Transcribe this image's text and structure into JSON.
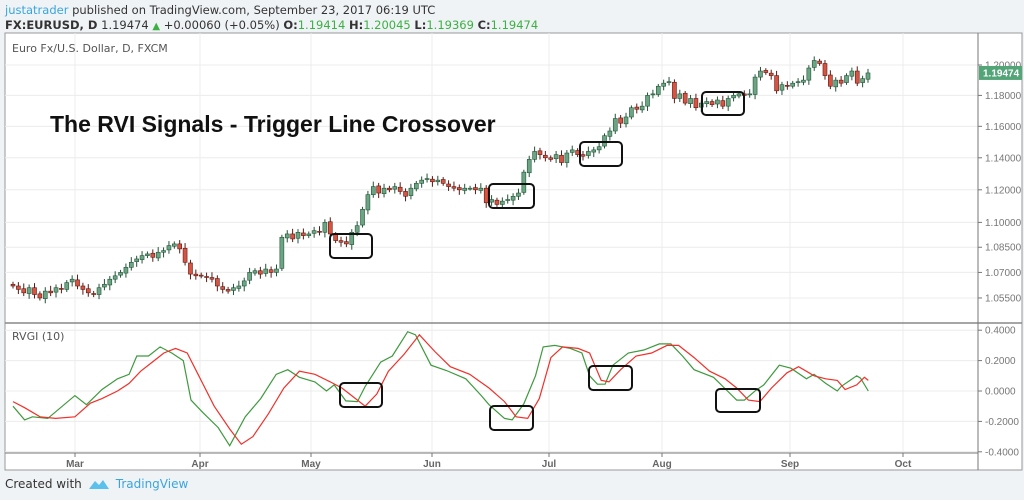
{
  "header": {
    "user": "justatrader",
    "published": "published on TradingView.com, September 23, 2017 06:19 UTC",
    "symbol": "FX:EURUSD, D",
    "last": "1.19474",
    "change": "+0.00060 (+0.05%)",
    "o_label": "O:",
    "o": "1.19414",
    "h_label": "H:",
    "h": "1.20045",
    "l_label": "L:",
    "l": "1.19369",
    "c_label": "C:",
    "c": "1.19474"
  },
  "footer": {
    "created_with": "Created with",
    "brand": "TradingView"
  },
  "colors": {
    "up": "#6ba583",
    "down": "#d75442",
    "rvgi": "#3e9a3e",
    "signal": "#f0302a",
    "last_price_bg": "#53a577",
    "annotation_box": "#111111"
  },
  "chart_data": [
    {
      "type": "candlestick",
      "title": "The RVI Signals - Trigger Line Crossover",
      "symbol_label": "Euro Fx/U.S. Dollar, D, FXCM",
      "first_date": "2017-02-13",
      "last_date": "2017-09-22",
      "y_scale": "log",
      "ylim": [
        1.045,
        1.212
      ],
      "y_ticks": [
        "1.20000",
        "1.18000",
        "1.16000",
        "1.14000",
        "1.12000",
        "1.10000",
        "1.08500",
        "1.07000",
        "1.05500"
      ],
      "x_ticks": [
        "Mar",
        "Apr",
        "May",
        "Jun",
        "Jul",
        "Aug",
        "Sep",
        "Oct"
      ],
      "last_price_label": "1.19474",
      "grid": true,
      "closes": [
        1.062,
        1.06,
        1.058,
        1.061,
        1.057,
        1.055,
        1.059,
        1.058,
        1.061,
        1.06,
        1.064,
        1.066,
        1.062,
        1.06,
        1.058,
        1.057,
        1.061,
        1.063,
        1.066,
        1.068,
        1.07,
        1.073,
        1.076,
        1.078,
        1.08,
        1.081,
        1.079,
        1.082,
        1.083,
        1.086,
        1.087,
        1.084,
        1.076,
        1.069,
        1.068,
        1.068,
        1.067,
        1.066,
        1.062,
        1.06,
        1.059,
        1.061,
        1.062,
        1.065,
        1.07,
        1.071,
        1.069,
        1.072,
        1.07,
        1.072,
        1.091,
        1.093,
        1.09,
        1.094,
        1.092,
        1.093,
        1.095,
        1.094,
        1.1,
        1.093,
        1.089,
        1.088,
        1.087,
        1.094,
        1.098,
        1.108,
        1.117,
        1.122,
        1.118,
        1.121,
        1.12,
        1.122,
        1.119,
        1.116,
        1.121,
        1.124,
        1.126,
        1.127,
        1.125,
        1.126,
        1.124,
        1.122,
        1.121,
        1.12,
        1.121,
        1.121,
        1.12,
        1.121,
        1.112,
        1.114,
        1.111,
        1.113,
        1.114,
        1.116,
        1.118,
        1.131,
        1.139,
        1.144,
        1.142,
        1.14,
        1.139,
        1.142,
        1.137,
        1.143,
        1.145,
        1.142,
        1.141,
        1.144,
        1.145,
        1.147,
        1.154,
        1.157,
        1.165,
        1.162,
        1.166,
        1.172,
        1.171,
        1.173,
        1.18,
        1.181,
        1.186,
        1.188,
        1.189,
        1.178,
        1.181,
        1.175,
        1.178,
        1.172,
        1.175,
        1.176,
        1.174,
        1.177,
        1.173,
        1.178,
        1.18,
        1.181,
        1.18,
        1.181,
        1.192,
        1.196,
        1.195,
        1.193,
        1.183,
        1.187,
        1.186,
        1.188,
        1.189,
        1.19,
        1.198,
        1.203,
        1.201,
        1.193,
        1.186,
        1.19,
        1.188,
        1.193,
        1.196,
        1.188,
        1.191,
        1.19474
      ]
    },
    {
      "type": "line",
      "label": "RVGI (10)",
      "ylim": [
        -0.4,
        0.4
      ],
      "y_ticks": [
        "0.4000",
        "0.2000",
        "0.0000",
        "-0.2000",
        "-0.4000"
      ],
      "series": [
        {
          "key": "rvgi",
          "points": [
            [
              "2017-02-13",
              -0.1
            ],
            [
              "2017-02-16",
              -0.19
            ],
            [
              "2017-02-18",
              -0.17
            ],
            [
              "2017-02-22",
              -0.18
            ],
            [
              "2017-03-01",
              -0.03
            ],
            [
              "2017-03-04",
              -0.09
            ],
            [
              "2017-03-08",
              0.01
            ],
            [
              "2017-03-12",
              0.08
            ],
            [
              "2017-03-15",
              0.11
            ],
            [
              "2017-03-17",
              0.23
            ],
            [
              "2017-03-20",
              0.23
            ],
            [
              "2017-03-23",
              0.29
            ],
            [
              "2017-03-26",
              0.25
            ],
            [
              "2017-03-29",
              0.2
            ],
            [
              "2017-03-31",
              -0.06
            ],
            [
              "2017-04-03",
              -0.14
            ],
            [
              "2017-04-07",
              -0.24
            ],
            [
              "2017-04-10",
              -0.36
            ],
            [
              "2017-04-14",
              -0.17
            ],
            [
              "2017-04-18",
              -0.05
            ],
            [
              "2017-04-22",
              0.11
            ],
            [
              "2017-04-25",
              0.14
            ],
            [
              "2017-04-28",
              0.09
            ],
            [
              "2017-05-02",
              0.06
            ],
            [
              "2017-05-05",
              0.0
            ],
            [
              "2017-05-07",
              0.04
            ],
            [
              "2017-05-10",
              -0.065
            ],
            [
              "2017-05-13",
              -0.07
            ],
            [
              "2017-05-15",
              0.03
            ],
            [
              "2017-05-19",
              0.19
            ],
            [
              "2017-05-22",
              0.23
            ],
            [
              "2017-05-26",
              0.39
            ],
            [
              "2017-05-28",
              0.37
            ],
            [
              "2017-06-01",
              0.17
            ],
            [
              "2017-06-05",
              0.135
            ],
            [
              "2017-06-10",
              0.08
            ],
            [
              "2017-06-14",
              -0.03
            ],
            [
              "2017-06-16",
              -0.09
            ],
            [
              "2017-06-20",
              -0.18
            ],
            [
              "2017-06-22",
              -0.19
            ],
            [
              "2017-06-25",
              -0.085
            ],
            [
              "2017-06-28",
              0.1
            ],
            [
              "2017-06-30",
              0.29
            ],
            [
              "2017-07-03",
              0.3
            ],
            [
              "2017-07-07",
              0.28
            ],
            [
              "2017-07-10",
              0.25
            ],
            [
              "2017-07-12",
              0.1
            ],
            [
              "2017-07-14",
              0.045
            ],
            [
              "2017-07-16",
              0.045
            ],
            [
              "2017-07-18",
              0.17
            ],
            [
              "2017-07-22",
              0.25
            ],
            [
              "2017-07-26",
              0.27
            ],
            [
              "2017-07-30",
              0.31
            ],
            [
              "2017-08-02",
              0.31
            ],
            [
              "2017-08-05",
              0.23
            ],
            [
              "2017-08-08",
              0.14
            ],
            [
              "2017-08-13",
              0.09
            ],
            [
              "2017-08-17",
              -0.01
            ],
            [
              "2017-08-19",
              -0.06
            ],
            [
              "2017-08-21",
              -0.06
            ],
            [
              "2017-08-24",
              0.005
            ],
            [
              "2017-08-26",
              0.04
            ],
            [
              "2017-08-30",
              0.17
            ],
            [
              "2017-09-02",
              0.15
            ],
            [
              "2017-09-06",
              0.08
            ],
            [
              "2017-09-08",
              0.11
            ],
            [
              "2017-09-11",
              0.05
            ],
            [
              "2017-09-14",
              0.0
            ],
            [
              "2017-09-15",
              0.03
            ],
            [
              "2017-09-19",
              0.1
            ],
            [
              "2017-09-20",
              0.085
            ],
            [
              "2017-09-22",
              0.0
            ]
          ]
        },
        {
          "key": "signal",
          "points": [
            [
              "2017-02-13",
              -0.07
            ],
            [
              "2017-02-16",
              -0.11
            ],
            [
              "2017-02-20",
              -0.17
            ],
            [
              "2017-02-24",
              -0.18
            ],
            [
              "2017-03-01",
              -0.17
            ],
            [
              "2017-03-05",
              -0.08
            ],
            [
              "2017-03-08",
              -0.05
            ],
            [
              "2017-03-12",
              0.0
            ],
            [
              "2017-03-15",
              0.05
            ],
            [
              "2017-03-18",
              0.13
            ],
            [
              "2017-03-21",
              0.19
            ],
            [
              "2017-03-24",
              0.25
            ],
            [
              "2017-03-27",
              0.28
            ],
            [
              "2017-03-30",
              0.25
            ],
            [
              "2017-04-02",
              0.1
            ],
            [
              "2017-04-06",
              -0.1
            ],
            [
              "2017-04-10",
              -0.25
            ],
            [
              "2017-04-13",
              -0.35
            ],
            [
              "2017-04-16",
              -0.3
            ],
            [
              "2017-04-20",
              -0.15
            ],
            [
              "2017-04-24",
              0.02
            ],
            [
              "2017-04-28",
              0.13
            ],
            [
              "2017-05-02",
              0.11
            ],
            [
              "2017-05-06",
              0.06
            ],
            [
              "2017-05-09",
              0.02
            ],
            [
              "2017-05-12",
              -0.04
            ],
            [
              "2017-05-15",
              -0.1
            ],
            [
              "2017-05-18",
              -0.02
            ],
            [
              "2017-05-21",
              0.13
            ],
            [
              "2017-05-25",
              0.24
            ],
            [
              "2017-05-29",
              0.37
            ],
            [
              "2017-06-02",
              0.26
            ],
            [
              "2017-06-06",
              0.16
            ],
            [
              "2017-06-11",
              0.11
            ],
            [
              "2017-06-16",
              0.02
            ],
            [
              "2017-06-20",
              -0.07
            ],
            [
              "2017-06-23",
              -0.17
            ],
            [
              "2017-06-26",
              -0.18
            ],
            [
              "2017-06-29",
              -0.05
            ],
            [
              "2017-07-02",
              0.22
            ],
            [
              "2017-07-05",
              0.29
            ],
            [
              "2017-07-09",
              0.28
            ],
            [
              "2017-07-12",
              0.25
            ],
            [
              "2017-07-15",
              0.07
            ],
            [
              "2017-07-17",
              0.06
            ],
            [
              "2017-07-20",
              0.14
            ],
            [
              "2017-07-24",
              0.23
            ],
            [
              "2017-07-28",
              0.25
            ],
            [
              "2017-08-01",
              0.3
            ],
            [
              "2017-08-04",
              0.3
            ],
            [
              "2017-08-08",
              0.22
            ],
            [
              "2017-08-12",
              0.13
            ],
            [
              "2017-08-16",
              0.08
            ],
            [
              "2017-08-19",
              0.02
            ],
            [
              "2017-08-22",
              -0.06
            ],
            [
              "2017-08-25",
              -0.07
            ],
            [
              "2017-08-28",
              0.02
            ],
            [
              "2017-09-01",
              0.12
            ],
            [
              "2017-09-04",
              0.16
            ],
            [
              "2017-09-08",
              0.1
            ],
            [
              "2017-09-11",
              0.08
            ],
            [
              "2017-09-14",
              0.07
            ],
            [
              "2017-09-16",
              0.01
            ],
            [
              "2017-09-19",
              0.04
            ],
            [
              "2017-09-21",
              0.09
            ],
            [
              "2017-09-22",
              0.07
            ]
          ]
        }
      ]
    }
  ]
}
